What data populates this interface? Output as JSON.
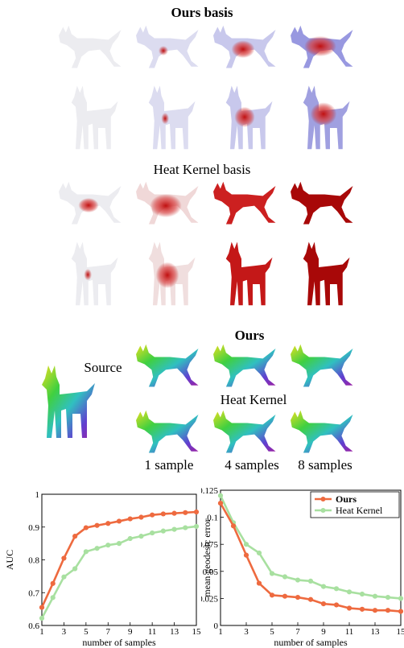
{
  "headings": {
    "ours_basis": "Ours basis",
    "heat_kernel_basis": "Heat Kernel basis",
    "ours": "Ours",
    "source": "Source",
    "heat_kernel": "Heat Kernel"
  },
  "sample_labels": [
    "1 sample",
    "4 samples",
    "8 samples"
  ],
  "colors": {
    "ours": "#ee6a3f",
    "heat_kernel": "#a8e0a0",
    "dog_base": "#ececf0",
    "blue": "#3030d0",
    "red": "#c01010"
  },
  "chart_data": [
    {
      "type": "line",
      "xlabel": "number of samples",
      "ylabel": "AUC",
      "xlim": [
        1,
        15
      ],
      "ylim": [
        0.6,
        1
      ],
      "xticks": [
        1,
        3,
        5,
        7,
        9,
        11,
        13,
        15
      ],
      "yticks": [
        0.6,
        0.7,
        0.8,
        0.9,
        1
      ],
      "ytick_labels": [
        "0.6",
        "0.7",
        "0.8",
        "0.9",
        "1"
      ],
      "grid": false,
      "x": [
        1,
        2,
        3,
        4,
        5,
        6,
        7,
        8,
        9,
        10,
        11,
        12,
        13,
        14,
        15
      ],
      "series": [
        {
          "name": "",
          "color": "#ee6a3f",
          "values": [
            0.655,
            0.728,
            0.805,
            0.872,
            0.898,
            0.905,
            0.911,
            0.918,
            0.925,
            0.93,
            0.937,
            0.94,
            0.942,
            0.944,
            0.946
          ]
        },
        {
          "name": "",
          "color": "#a8e0a0",
          "values": [
            0.622,
            0.685,
            0.748,
            0.773,
            0.825,
            0.835,
            0.845,
            0.85,
            0.865,
            0.872,
            0.882,
            0.888,
            0.893,
            0.898,
            0.902
          ]
        }
      ]
    },
    {
      "type": "line",
      "xlabel": "number of samples",
      "ylabel": "mean geodesic error",
      "xlim": [
        1,
        15
      ],
      "ylim": [
        0,
        0.125
      ],
      "xticks": [
        1,
        3,
        5,
        7,
        9,
        11,
        13,
        15
      ],
      "yticks": [
        0,
        0.025,
        0.05,
        0.075,
        0.1,
        0.125
      ],
      "ytick_labels": [
        "0",
        "0.025",
        "0.05",
        "0.075",
        "0.1",
        "0.125"
      ],
      "grid": false,
      "legend": "top-right",
      "x": [
        1,
        2,
        3,
        4,
        5,
        6,
        7,
        8,
        9,
        10,
        11,
        12,
        13,
        14,
        15
      ],
      "series": [
        {
          "name": "Ours",
          "color": "#ee6a3f",
          "values": [
            0.113,
            0.092,
            0.065,
            0.039,
            0.028,
            0.027,
            0.026,
            0.024,
            0.02,
            0.019,
            0.016,
            0.015,
            0.014,
            0.014,
            0.013
          ]
        },
        {
          "name": "Heat Kernel",
          "color": "#a8e0a0",
          "values": [
            0.12,
            0.095,
            0.075,
            0.067,
            0.048,
            0.045,
            0.042,
            0.041,
            0.036,
            0.034,
            0.031,
            0.029,
            0.027,
            0.026,
            0.025
          ]
        }
      ]
    }
  ]
}
